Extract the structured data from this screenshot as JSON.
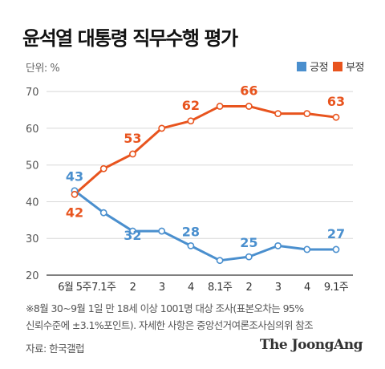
{
  "title": "윤석열 대통령 직무수행 평가",
  "unit_label": "단위: %",
  "colors": {
    "positive": "#4a8fce",
    "negative": "#e8541e",
    "grid": "#d8d8d8",
    "axis": "#333333",
    "tick": "#555555"
  },
  "legend": [
    {
      "name": "긍정",
      "color": "#4a8fce"
    },
    {
      "name": "부정",
      "color": "#e8541e"
    }
  ],
  "chart_data": {
    "type": "line",
    "categories": [
      "6월 5주",
      "7.1주",
      "2",
      "3",
      "4",
      "8.1주",
      "2",
      "3",
      "4",
      "9.1주"
    ],
    "y_ticks": [
      20,
      30,
      40,
      50,
      60,
      70
    ],
    "ylim": [
      20,
      72
    ],
    "grid": true,
    "legend_position": "top-right",
    "series": [
      {
        "name": "긍정",
        "values": [
          43,
          37,
          32,
          32,
          28,
          24,
          25,
          28,
          27,
          27
        ],
        "labels": [
          "43",
          "",
          "32",
          "",
          "28",
          "",
          "25",
          "",
          "",
          "27"
        ]
      },
      {
        "name": "부정",
        "values": [
          42,
          49,
          53,
          60,
          62,
          66,
          66,
          64,
          64,
          63
        ],
        "labels": [
          "42",
          "",
          "53",
          "",
          "62",
          "",
          "66",
          "",
          "",
          "63"
        ]
      }
    ]
  },
  "note_line1": "※8월 30~9월 1일 만 18세 이상 1001명 대상 조사(표본오차는 95%",
  "note_line2": "신뢰수준에 ±3.1%포인트). 자세한 사항은 중앙선거여론조사심의위 참조",
  "source": "자료: 한국갤럽",
  "brand": "The JoongAng"
}
